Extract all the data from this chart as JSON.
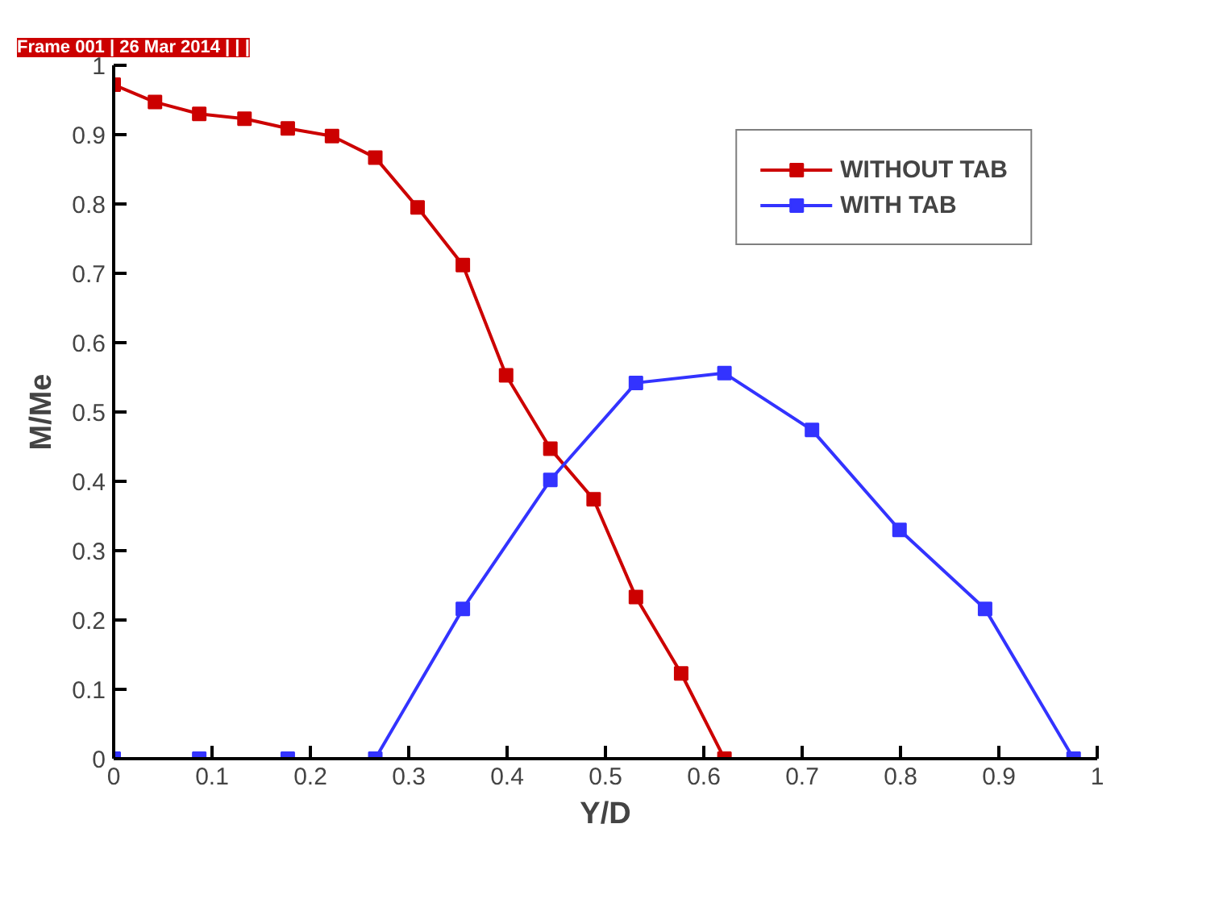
{
  "chart_data": {
    "type": "line",
    "subtitle": "Frame 001 | 26 Mar 2014 | | |",
    "xlabel": "Y/D",
    "ylabel": "M/Me",
    "xlim": [
      0,
      1
    ],
    "ylim": [
      0,
      1
    ],
    "xticks": [
      0,
      0.1,
      0.2,
      0.3,
      0.4,
      0.5,
      0.6,
      0.7,
      0.8,
      0.9,
      1
    ],
    "yticks": [
      0,
      0.1,
      0.2,
      0.3,
      0.4,
      0.5,
      0.6,
      0.7,
      0.8,
      0.9,
      1
    ],
    "grid": false,
    "legend": "top right",
    "marker": "square",
    "line_style": "solid",
    "series": [
      {
        "name": "WITHOUT TAB",
        "color": "#cc0000",
        "x": [
          0,
          0.042,
          0.087,
          0.133,
          0.177,
          0.222,
          0.266,
          0.309,
          0.355,
          0.399,
          0.444,
          0.488,
          0.531,
          0.577,
          0.621
        ],
        "values": [
          0.972,
          0.947,
          0.93,
          0.923,
          0.909,
          0.898,
          0.867,
          0.795,
          0.712,
          0.553,
          0.447,
          0.374,
          0.233,
          0.123,
          0
        ]
      },
      {
        "name": "WITH TAB",
        "color": "#3333ff",
        "x": [
          0,
          0.087,
          0.177,
          0.266,
          0.355,
          0.444,
          0.531,
          0.621,
          0.71,
          0.799,
          0.886,
          0.976
        ],
        "values": [
          0,
          0,
          0,
          0,
          0.216,
          0.402,
          0.542,
          0.556,
          0.474,
          0.33,
          0.216,
          0
        ]
      }
    ]
  }
}
